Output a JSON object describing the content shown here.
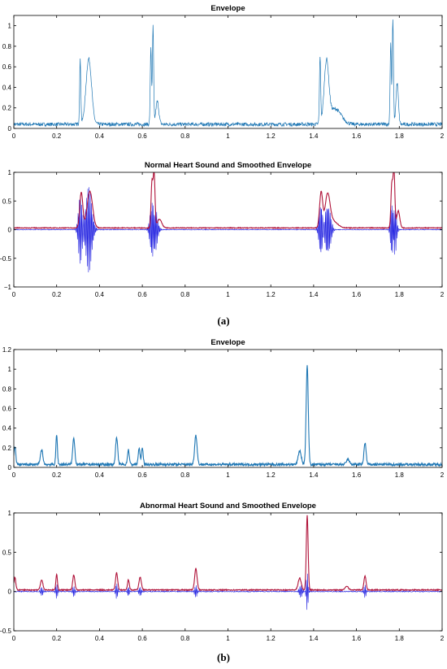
{
  "panel_labels": [
    "(a)",
    "(b)"
  ],
  "colors": {
    "envelope": "#1f77b4",
    "signal": "#2020e0",
    "smoothed": "#b0133a",
    "axis": "#000000"
  },
  "chart_data": [
    {
      "type": "line",
      "panel": "a",
      "title": "Envelope",
      "xlabel": "",
      "ylabel": "",
      "xlim": [
        0,
        2
      ],
      "ylim": [
        0,
        1.1
      ],
      "xticks": [
        0,
        0.2,
        0.4,
        0.6,
        0.8,
        1,
        1.2,
        1.4,
        1.6,
        1.8,
        2
      ],
      "yticks": [
        0,
        0.2,
        0.4,
        0.6,
        0.8,
        1
      ],
      "grid": false,
      "series": [
        {
          "color": "#1f77b4",
          "style": "thin",
          "baseline": 0.04,
          "peaks": [
            [
              0.31,
              0.62,
              0.004
            ],
            [
              0.35,
              0.64,
              0.018
            ],
            [
              0.64,
              0.75,
              0.004
            ],
            [
              0.65,
              0.95,
              0.004
            ],
            [
              0.67,
              0.22,
              0.01
            ],
            [
              1.43,
              0.65,
              0.004
            ],
            [
              1.46,
              0.58,
              0.015
            ],
            [
              1.5,
              0.15,
              0.04
            ],
            [
              1.76,
              0.8,
              0.004
            ],
            [
              1.77,
              1.02,
              0.004
            ],
            [
              1.79,
              0.4,
              0.008
            ]
          ]
        }
      ]
    },
    {
      "type": "line",
      "panel": "a",
      "title": "Normal Heart Sound and Smoothed Envelope",
      "xlabel": "",
      "ylabel": "",
      "xlim": [
        0,
        2
      ],
      "ylim": [
        -1,
        1
      ],
      "xticks": [
        0,
        0.2,
        0.4,
        0.6,
        0.8,
        1,
        1.2,
        1.4,
        1.6,
        1.8,
        2
      ],
      "yticks": [
        -1,
        -0.5,
        0,
        0.5,
        1
      ],
      "grid": false,
      "series": [
        {
          "color": "#2020e0",
          "style": "oscillating",
          "bursts": [
            [
              0.31,
              0.6,
              0.012
            ],
            [
              0.35,
              0.75,
              0.02
            ],
            [
              0.645,
              0.55,
              0.012
            ],
            [
              0.66,
              0.4,
              0.015
            ],
            [
              1.435,
              0.55,
              0.012
            ],
            [
              1.465,
              0.5,
              0.018
            ],
            [
              1.765,
              0.55,
              0.008
            ],
            [
              1.78,
              0.45,
              0.01
            ]
          ]
        },
        {
          "color": "#b0133a",
          "style": "smooth",
          "baseline": 0.03,
          "peaks": [
            [
              0.315,
              0.62,
              0.01
            ],
            [
              0.355,
              0.64,
              0.018
            ],
            [
              0.645,
              0.78,
              0.006
            ],
            [
              0.655,
              0.94,
              0.006
            ],
            [
              0.68,
              0.15,
              0.015
            ],
            [
              1.435,
              0.62,
              0.01
            ],
            [
              1.465,
              0.55,
              0.016
            ],
            [
              1.49,
              0.12,
              0.03
            ],
            [
              1.765,
              0.75,
              0.006
            ],
            [
              1.775,
              1.0,
              0.006
            ],
            [
              1.795,
              0.3,
              0.01
            ]
          ]
        }
      ]
    },
    {
      "type": "line",
      "panel": "b",
      "title": "Envelope",
      "xlabel": "",
      "ylabel": "",
      "xlim": [
        0,
        2
      ],
      "ylim": [
        0,
        1.2
      ],
      "xticks": [
        0,
        0.2,
        0.4,
        0.6,
        0.8,
        1,
        1.2,
        1.4,
        1.6,
        1.8,
        2
      ],
      "yticks": [
        0,
        0.2,
        0.4,
        0.6,
        0.8,
        1,
        1.2
      ],
      "grid": false,
      "series": [
        {
          "color": "#1f77b4",
          "style": "thick",
          "baseline": 0.03,
          "peaks": [
            [
              0.005,
              0.18,
              0.006
            ],
            [
              0.13,
              0.15,
              0.008
            ],
            [
              0.2,
              0.3,
              0.005
            ],
            [
              0.28,
              0.27,
              0.007
            ],
            [
              0.48,
              0.27,
              0.007
            ],
            [
              0.535,
              0.15,
              0.006
            ],
            [
              0.585,
              0.16,
              0.006
            ],
            [
              0.6,
              0.16,
              0.006
            ],
            [
              0.85,
              0.3,
              0.008
            ],
            [
              1.335,
              0.14,
              0.01
            ],
            [
              1.37,
              1.0,
              0.007
            ],
            [
              1.56,
              0.05,
              0.01
            ],
            [
              1.64,
              0.22,
              0.007
            ]
          ]
        }
      ]
    },
    {
      "type": "line",
      "panel": "b",
      "title": "Abnormal Heart Sound and Smoothed Envelope",
      "xlabel": "",
      "ylabel": "",
      "xlim": [
        0,
        2
      ],
      "ylim": [
        -0.5,
        1
      ],
      "xticks": [
        0,
        0.2,
        0.4,
        0.6,
        0.8,
        1,
        1.2,
        1.4,
        1.6,
        1.8,
        2
      ],
      "yticks": [
        -0.5,
        0,
        0.5,
        1
      ],
      "grid": false,
      "series": [
        {
          "color": "#2020e0",
          "style": "oscillating",
          "bursts": [
            [
              0.13,
              0.06,
              0.008
            ],
            [
              0.2,
              0.1,
              0.006
            ],
            [
              0.28,
              0.07,
              0.007
            ],
            [
              0.48,
              0.1,
              0.007
            ],
            [
              0.535,
              0.07,
              0.006
            ],
            [
              0.59,
              0.06,
              0.008
            ],
            [
              0.85,
              0.08,
              0.008
            ],
            [
              1.34,
              0.08,
              0.01
            ],
            [
              1.37,
              0.24,
              0.006
            ],
            [
              1.64,
              0.08,
              0.007
            ]
          ]
        },
        {
          "color": "#b0133a",
          "style": "smooth",
          "baseline": 0.02,
          "peaks": [
            [
              0.005,
              0.16,
              0.006
            ],
            [
              0.13,
              0.13,
              0.008
            ],
            [
              0.2,
              0.2,
              0.005
            ],
            [
              0.28,
              0.19,
              0.007
            ],
            [
              0.48,
              0.22,
              0.007
            ],
            [
              0.535,
              0.13,
              0.006
            ],
            [
              0.59,
              0.16,
              0.008
            ],
            [
              0.85,
              0.27,
              0.008
            ],
            [
              1.335,
              0.15,
              0.01
            ],
            [
              1.37,
              0.95,
              0.006
            ],
            [
              1.555,
              0.05,
              0.01
            ],
            [
              1.64,
              0.18,
              0.007
            ]
          ]
        }
      ]
    }
  ]
}
